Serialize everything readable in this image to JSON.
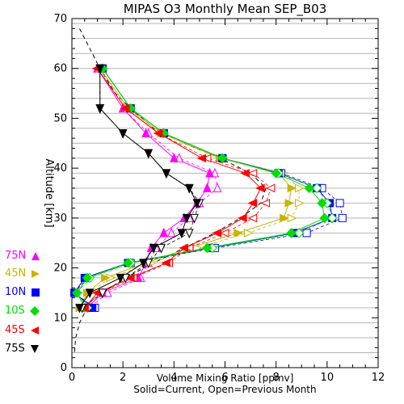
{
  "chart_data": {
    "type": "line",
    "title": "MIPAS O3 Monthly Mean SEP_B03",
    "xlabel": "Volume Mixing Ratio [ppmv]",
    "xlabel2": "Solid=Current, Open=Previous Month",
    "ylabel": "Altitude [km]",
    "xlim": [
      0,
      12
    ],
    "ylim": [
      0,
      70
    ],
    "x_ticks": [
      "0",
      "2",
      "4",
      "6",
      "8",
      "10",
      "12"
    ],
    "y_ticks": [
      "0",
      "10",
      "20",
      "30",
      "40",
      "50",
      "60",
      "70"
    ],
    "grid": "horizontal lines every 3 km",
    "legend_position": "left",
    "reference_profile": {
      "style": "dashed",
      "points": [
        [
          0.3,
          68
        ],
        [
          0.6,
          65
        ],
        [
          1.1,
          60
        ],
        [
          1.7,
          55
        ],
        [
          2.3,
          52
        ],
        [
          3.2,
          48
        ],
        [
          4.4,
          45
        ],
        [
          5.8,
          42
        ],
        [
          7.0,
          39
        ],
        [
          7.6,
          36
        ],
        [
          7.4,
          33
        ],
        [
          6.6,
          30
        ],
        [
          5.6,
          27
        ],
        [
          4.4,
          24
        ],
        [
          3.2,
          21
        ],
        [
          2.1,
          18
        ],
        [
          1.2,
          15
        ],
        [
          0.6,
          12
        ],
        [
          0.3,
          9
        ],
        [
          0.15,
          6
        ],
        [
          0.1,
          3
        ]
      ]
    },
    "series": [
      {
        "name": "75N",
        "color": "#ff00ff",
        "marker": "triangle-up",
        "current": [
          [
            1.0,
            60
          ],
          [
            2.0,
            52
          ],
          [
            2.9,
            47
          ],
          [
            4.0,
            42
          ],
          [
            5.4,
            39
          ],
          [
            5.3,
            36
          ],
          [
            4.9,
            33
          ],
          [
            4.4,
            30
          ],
          [
            3.6,
            27
          ],
          [
            3.1,
            24
          ],
          [
            2.9,
            21
          ],
          [
            2.6,
            18
          ],
          [
            1.2,
            15
          ],
          [
            0.6,
            12
          ]
        ],
        "previous": [
          [
            1.0,
            60
          ],
          [
            2.0,
            52
          ],
          [
            3.0,
            47
          ],
          [
            4.2,
            42
          ],
          [
            5.6,
            39
          ],
          [
            5.7,
            36
          ],
          [
            5.0,
            33
          ],
          [
            4.6,
            30
          ],
          [
            3.9,
            27
          ],
          [
            3.3,
            24
          ],
          [
            3.0,
            21
          ],
          [
            2.7,
            18
          ],
          [
            1.4,
            15
          ],
          [
            0.7,
            12
          ]
        ]
      },
      {
        "name": "45N",
        "color": "#c8b400",
        "marker": "triangle-right",
        "current": [
          [
            1.1,
            60
          ],
          [
            2.2,
            52
          ],
          [
            3.5,
            47
          ],
          [
            5.8,
            42
          ],
          [
            8.1,
            39
          ],
          [
            8.6,
            36
          ],
          [
            8.5,
            33
          ],
          [
            8.3,
            30
          ],
          [
            6.5,
            27
          ],
          [
            4.6,
            24
          ],
          [
            2.9,
            21
          ],
          [
            1.3,
            18
          ],
          [
            0.6,
            15
          ],
          [
            0.3,
            12
          ]
        ],
        "previous": [
          [
            1.1,
            60
          ],
          [
            2.2,
            52
          ],
          [
            3.5,
            47
          ],
          [
            5.9,
            42
          ],
          [
            8.3,
            39
          ],
          [
            8.9,
            36
          ],
          [
            8.9,
            33
          ],
          [
            8.6,
            30
          ],
          [
            6.9,
            27
          ],
          [
            4.9,
            24
          ],
          [
            3.1,
            21
          ],
          [
            1.5,
            18
          ],
          [
            0.7,
            15
          ],
          [
            0.3,
            12
          ]
        ]
      },
      {
        "name": "10N",
        "color": "#0000ff",
        "marker": "square",
        "current": [
          [
            1.2,
            60
          ],
          [
            2.3,
            52
          ],
          [
            3.6,
            47
          ],
          [
            5.9,
            42
          ],
          [
            8.1,
            39
          ],
          [
            9.6,
            36
          ],
          [
            10.1,
            33
          ],
          [
            10.2,
            30
          ],
          [
            8.7,
            27
          ],
          [
            5.4,
            24
          ],
          [
            2.2,
            21
          ],
          [
            0.5,
            18
          ],
          [
            0.1,
            15
          ],
          [
            0.8,
            12
          ]
        ],
        "previous": [
          [
            1.2,
            60
          ],
          [
            2.3,
            52
          ],
          [
            3.6,
            47
          ],
          [
            5.9,
            42
          ],
          [
            8.2,
            39
          ],
          [
            9.8,
            36
          ],
          [
            10.5,
            33
          ],
          [
            10.6,
            30
          ],
          [
            9.2,
            27
          ],
          [
            5.6,
            24
          ],
          [
            2.3,
            21
          ],
          [
            0.6,
            18
          ],
          [
            0.1,
            15
          ],
          [
            0.9,
            12
          ]
        ]
      },
      {
        "name": "10S",
        "color": "#00dd00",
        "marker": "diamond",
        "current": [
          [
            1.2,
            60
          ],
          [
            2.3,
            52
          ],
          [
            3.6,
            47
          ],
          [
            5.9,
            42
          ],
          [
            8.0,
            39
          ],
          [
            9.3,
            36
          ],
          [
            9.8,
            33
          ],
          [
            9.9,
            30
          ],
          [
            8.6,
            27
          ],
          [
            5.3,
            24
          ],
          [
            2.2,
            21
          ],
          [
            0.6,
            18
          ],
          [
            0.2,
            15
          ],
          [
            0.5,
            12
          ]
        ],
        "previous": [
          [
            1.2,
            60
          ],
          [
            2.3,
            52
          ],
          [
            3.6,
            47
          ],
          [
            5.9,
            42
          ],
          [
            8.1,
            39
          ],
          [
            9.6,
            36
          ],
          [
            10.0,
            33
          ],
          [
            10.2,
            30
          ],
          [
            8.9,
            27
          ],
          [
            5.5,
            24
          ],
          [
            2.3,
            21
          ],
          [
            0.7,
            18
          ],
          [
            0.2,
            15
          ],
          [
            0.6,
            12
          ]
        ]
      },
      {
        "name": "45S",
        "color": "#ff0000",
        "marker": "triangle-left",
        "current": [
          [
            1.0,
            60
          ],
          [
            2.1,
            52
          ],
          [
            3.4,
            47
          ],
          [
            5.1,
            42
          ],
          [
            6.8,
            39
          ],
          [
            7.4,
            36
          ],
          [
            7.1,
            33
          ],
          [
            6.7,
            30
          ],
          [
            5.7,
            27
          ],
          [
            4.4,
            24
          ],
          [
            3.7,
            21
          ],
          [
            2.3,
            18
          ],
          [
            1.0,
            15
          ],
          [
            0.5,
            12
          ]
        ],
        "previous": [
          [
            1.0,
            60
          ],
          [
            2.1,
            52
          ],
          [
            3.4,
            47
          ],
          [
            5.3,
            42
          ],
          [
            7.1,
            39
          ],
          [
            7.8,
            36
          ],
          [
            7.6,
            33
          ],
          [
            7.1,
            30
          ],
          [
            6.0,
            27
          ],
          [
            4.6,
            24
          ],
          [
            3.8,
            21
          ],
          [
            2.4,
            18
          ],
          [
            1.1,
            15
          ],
          [
            0.5,
            12
          ]
        ]
      },
      {
        "name": "75S",
        "color": "#000000",
        "marker": "triangle-down",
        "current": [
          [
            1.1,
            60
          ],
          [
            1.1,
            52
          ],
          [
            2.0,
            47
          ],
          [
            3.0,
            43
          ],
          [
            3.7,
            39
          ],
          [
            4.6,
            36
          ],
          [
            4.9,
            33
          ],
          [
            4.5,
            30
          ],
          [
            4.3,
            27
          ],
          [
            3.2,
            24
          ],
          [
            2.8,
            21
          ],
          [
            1.9,
            18
          ],
          [
            0.7,
            15
          ],
          [
            0.3,
            12
          ]
        ],
        "previous": [
          [
            1.1,
            60
          ],
          [
            1.1,
            52
          ],
          [
            2.0,
            47
          ],
          [
            3.0,
            43
          ],
          [
            3.7,
            39
          ],
          [
            4.6,
            36
          ],
          [
            5.0,
            33
          ],
          [
            4.8,
            30
          ],
          [
            4.6,
            27
          ],
          [
            3.5,
            24
          ],
          [
            3.0,
            21
          ],
          [
            2.1,
            18
          ],
          [
            1.2,
            15
          ],
          [
            0.4,
            12
          ]
        ]
      }
    ]
  }
}
